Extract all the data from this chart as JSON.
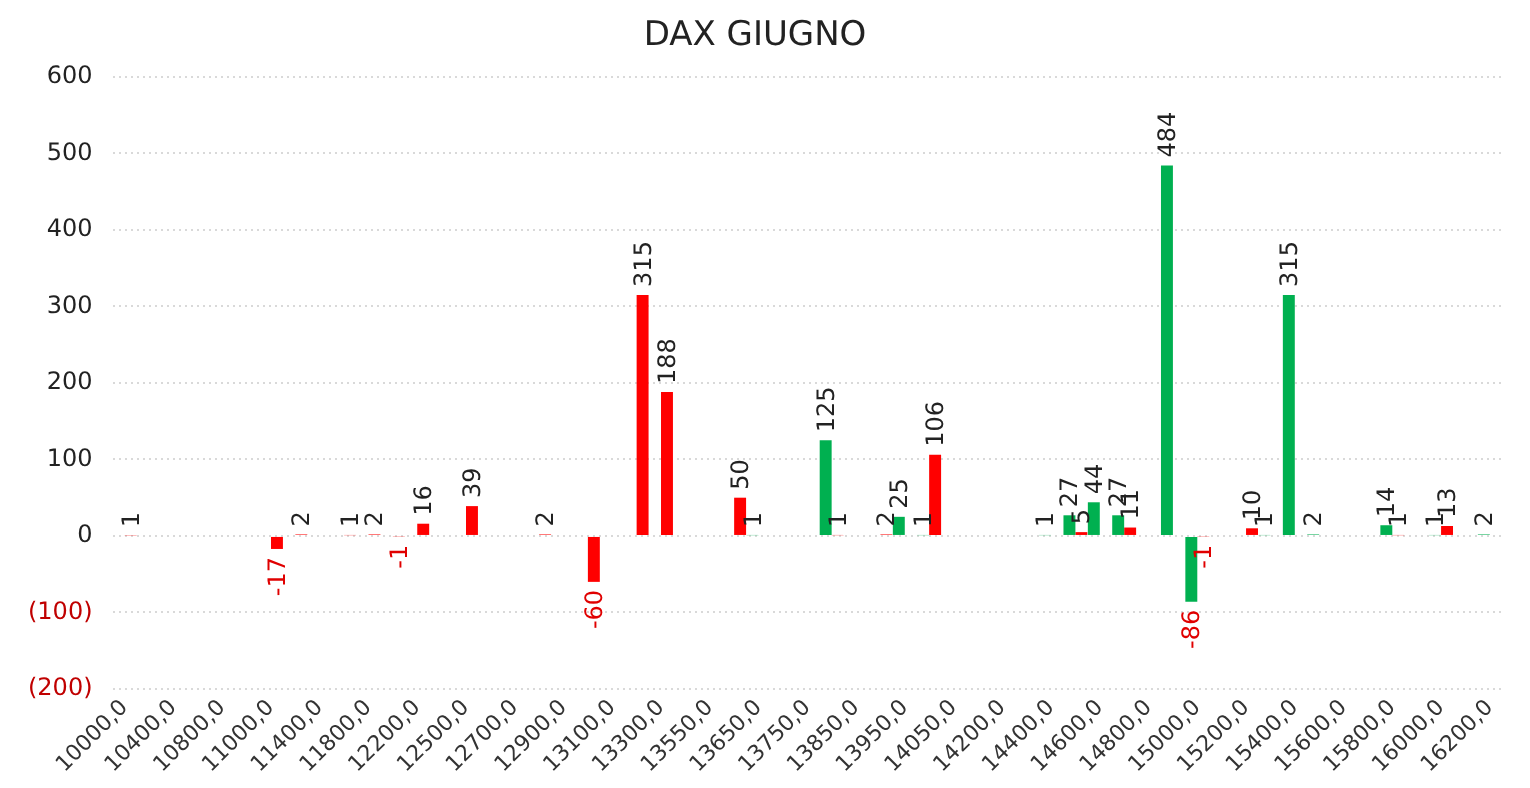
{
  "chart_data": {
    "type": "bar",
    "title": "DAX GIUGNO",
    "categories": [
      "10000,0",
      null,
      "10400,0",
      null,
      "10800,0",
      null,
      "11000,0",
      null,
      "11400,0",
      null,
      "11800,0",
      null,
      "12200,0",
      null,
      "12500,0",
      null,
      "12700,0",
      null,
      "12900,0",
      null,
      "13100,0",
      null,
      "13300,0",
      null,
      "13550,0",
      null,
      "13650,0",
      null,
      "13750,0",
      null,
      "13850,0",
      null,
      "13950,0",
      null,
      "14050,0",
      null,
      "14200,0",
      null,
      "14400,0",
      null,
      "14600,0",
      null,
      "14800,0",
      null,
      "15000,0",
      null,
      "15200,0",
      null,
      "15400,0",
      null,
      "15600,0",
      null,
      "15800,0",
      null,
      "16000,0",
      null,
      "16200,0"
    ],
    "series": [
      {
        "color": "#00b050",
        "values": [
          null,
          null,
          null,
          null,
          null,
          null,
          null,
          null,
          null,
          null,
          null,
          null,
          null,
          null,
          null,
          null,
          null,
          null,
          null,
          null,
          null,
          null,
          null,
          null,
          null,
          null,
          1,
          null,
          null,
          125,
          null,
          null,
          25,
          1,
          null,
          null,
          null,
          null,
          1,
          27,
          44,
          27,
          null,
          484,
          -86,
          null,
          null,
          1,
          315,
          2,
          null,
          null,
          14,
          null,
          1,
          null,
          2
        ]
      },
      {
        "color": "#ff0000",
        "values": [
          1,
          null,
          null,
          null,
          null,
          null,
          -17,
          2,
          null,
          1,
          2,
          -1,
          16,
          null,
          39,
          null,
          null,
          2,
          null,
          -60,
          null,
          315,
          188,
          null,
          null,
          50,
          null,
          null,
          null,
          1,
          null,
          2,
          null,
          106,
          null,
          null,
          null,
          null,
          null,
          5,
          null,
          11,
          null,
          null,
          -1,
          null,
          10,
          null,
          null,
          null,
          null,
          null,
          1,
          null,
          13,
          null,
          null
        ]
      }
    ],
    "ylim": [
      -200,
      600
    ],
    "yticks": [
      {
        "value": -200,
        "label": "(200)"
      },
      {
        "value": -100,
        "label": "(100)"
      },
      0,
      100,
      200,
      300,
      400,
      500,
      600
    ],
    "grid": "y",
    "data_labels": true,
    "legend": false
  }
}
